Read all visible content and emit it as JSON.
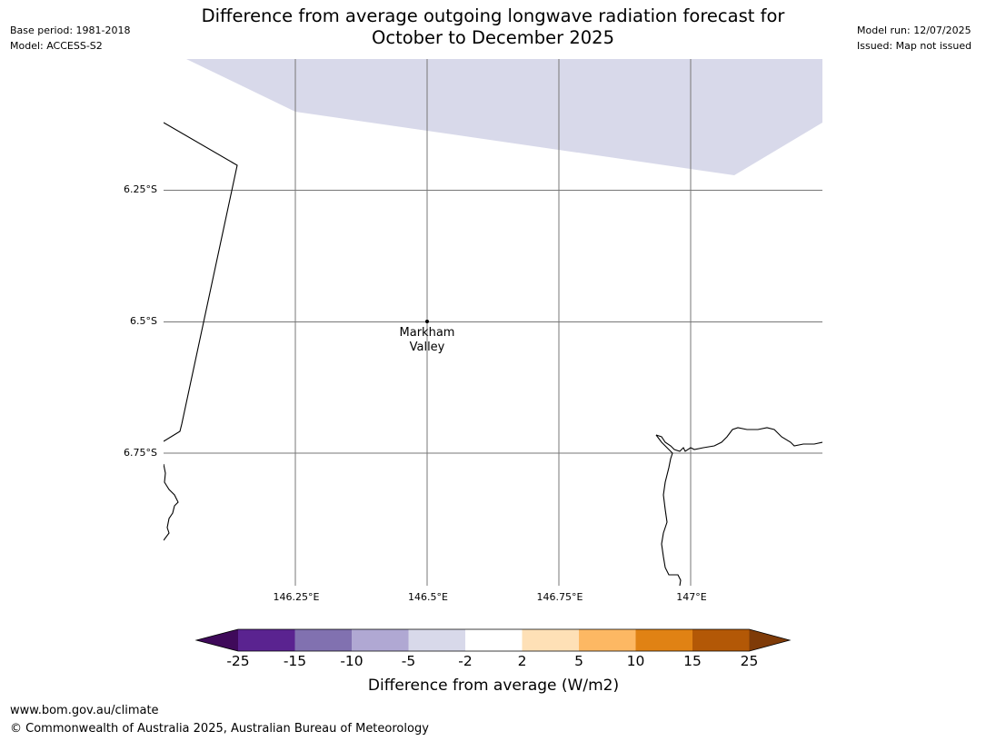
{
  "header": {
    "base_period": "Base period: 1981-2018",
    "model": "Model: ACCESS-S2",
    "model_run": "Model run: 12/07/2025",
    "issued": "Issued: Map not issued",
    "title_line1": "Difference from average outgoing longwave radiation forecast for",
    "title_line2": "October to December 2025"
  },
  "map": {
    "lat_labels": [
      "6.25°S",
      "6.5°S",
      "6.75°S"
    ],
    "lon_labels": [
      "146.25°E",
      "146.5°E",
      "146.75°E",
      "147°E"
    ],
    "place": {
      "line1": "Markham",
      "line2": "Valley"
    },
    "colors": {
      "land_fill": "#ffffff",
      "anomaly_fill": "#d8d9ea",
      "gridline": "#777777",
      "coastline": "#000000"
    }
  },
  "colorbar": {
    "ticks": [
      "-25",
      "-15",
      "-10",
      "-5",
      "-2",
      "2",
      "5",
      "10",
      "15",
      "25"
    ],
    "colors": [
      "#3f0a5a",
      "#5a2390",
      "#8171b0",
      "#b0a8d3",
      "#d8d9ea",
      "#ffffff",
      "#fee0b6",
      "#fdb863",
      "#e08214",
      "#b35806",
      "#7f3b08"
    ],
    "label": "Difference from average (W/m2)"
  },
  "footer": {
    "url": "www.bom.gov.au/climate",
    "copyright": "© Commonwealth of Australia 2025, Australian Bureau of Meteorology"
  }
}
